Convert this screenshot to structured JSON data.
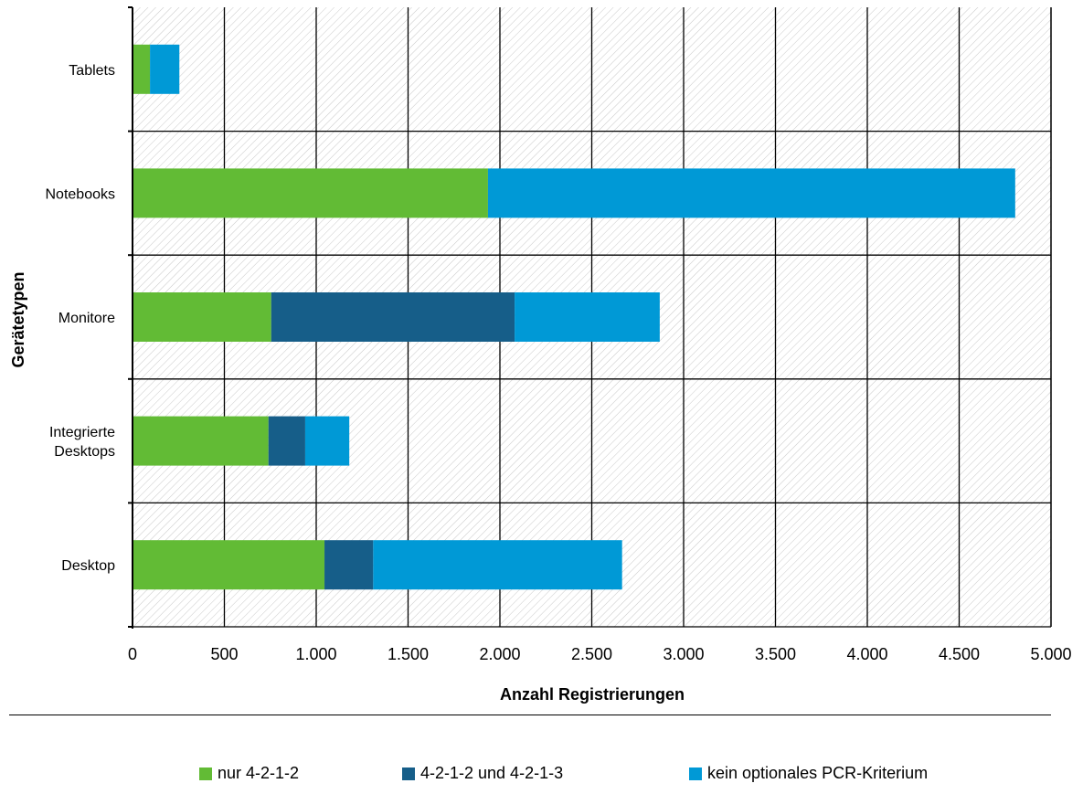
{
  "chart_data": {
    "type": "bar",
    "orientation": "horizontal",
    "stacked": true,
    "categories": [
      "Tablets",
      "Notebooks",
      "Monitore",
      "Integrierte Desktops",
      "Desktop"
    ],
    "category_display": [
      [
        "Tablets"
      ],
      [
        "Notebooks"
      ],
      [
        "Monitore"
      ],
      [
        "Integrierte",
        "Desktops"
      ],
      [
        "Desktop"
      ]
    ],
    "series": [
      {
        "name": "nur 4-2-1-2",
        "color": "#62bb35",
        "values": [
          95,
          1935,
          755,
          740,
          1045
        ]
      },
      {
        "name": "4-2-1-2 und 4-2-1-3",
        "color": "#165e89",
        "values": [
          0,
          0,
          1325,
          200,
          265
        ]
      },
      {
        "name": "kein optionales PCR-Kriterium",
        "color": "#0099d6",
        "values": [
          160,
          2870,
          790,
          240,
          1355
        ]
      }
    ],
    "xlabel": "Anzahl Registrierungen",
    "ylabel": "Gerätetypen",
    "xlim": [
      0,
      5000
    ],
    "x_ticks": [
      0,
      500,
      1000,
      1500,
      2000,
      2500,
      3000,
      3500,
      4000,
      4500,
      5000
    ],
    "x_tick_labels": [
      "0",
      "500",
      "1.000",
      "1.500",
      "2.000",
      "2.500",
      "3.000",
      "3.500",
      "4.000",
      "4.500",
      "5.000"
    ],
    "grid": true,
    "plot_background": "diagonal-hatch",
    "legend_position": "bottom"
  }
}
